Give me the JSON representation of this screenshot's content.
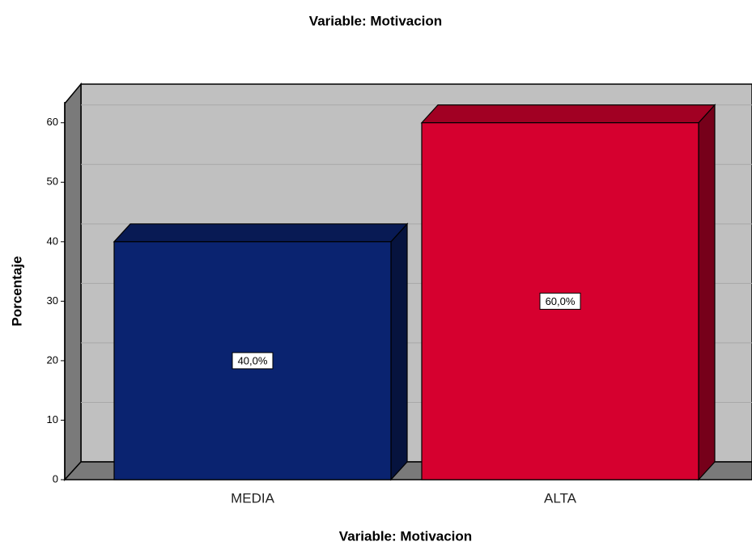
{
  "chart_data": {
    "type": "bar3d",
    "title": "Variable: Motivacion",
    "x_label": "Variable: Motivacion",
    "y_label": "Porcentaje",
    "categories": [
      "MEDIA",
      "ALTA"
    ],
    "values": [
      40,
      60
    ],
    "value_labels": [
      "40,0%",
      "60,0%"
    ],
    "colors": [
      "#0a2370",
      "#d6002f"
    ],
    "ylim": [
      0,
      63.5
    ],
    "yticks": [
      0,
      10,
      20,
      30,
      40,
      50,
      60
    ],
    "grid": true
  }
}
